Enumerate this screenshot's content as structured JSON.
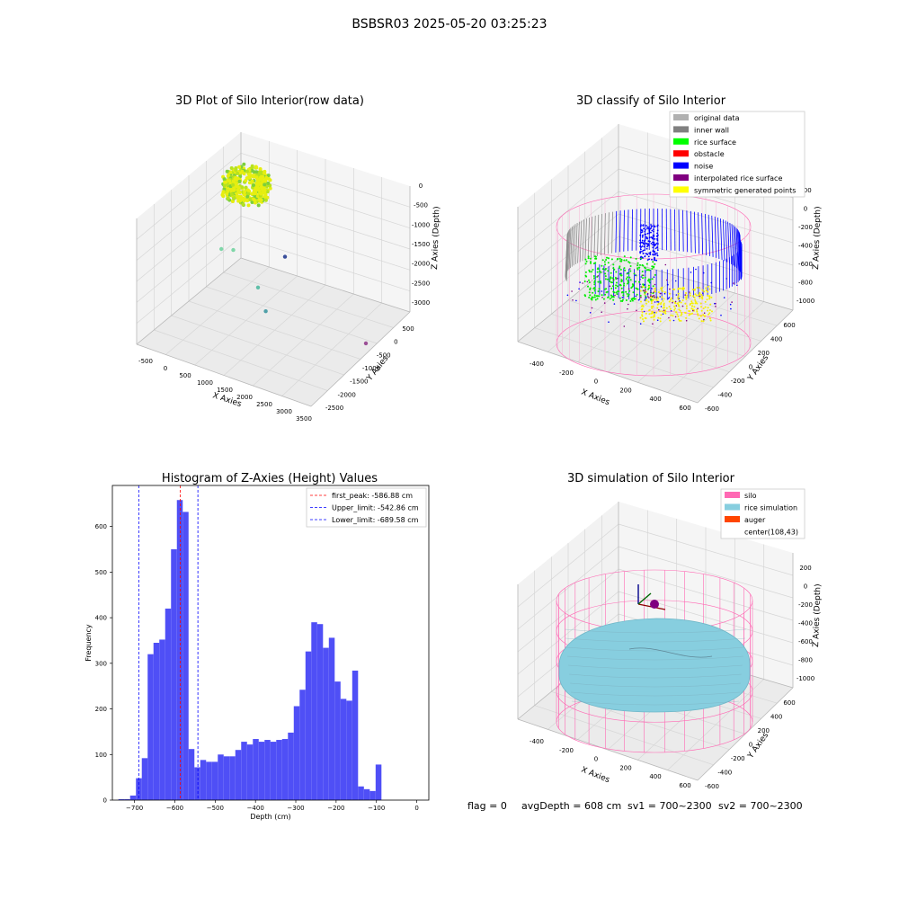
{
  "figure_title": "BSBSR03 2025-05-20 03:25:23",
  "footer": {
    "flag": "flag = 0",
    "avg_depth": "avgDepth = 608 cm",
    "sv1": "sv1 = 700~2300",
    "sv2": "sv2 = 700~2300"
  },
  "colors": {
    "hist_bar": "#4b4bf6",
    "peak_line": "#ff0000",
    "limit_line": "#0000ff",
    "rice_yellow": "#f5f000",
    "rice_green": "#00ee00",
    "noise_blue": "#0000ff",
    "wall_gray": "#8c8c8c",
    "silo_pink": "#ff69b4",
    "rice_sim": "#87cedf",
    "auger": "#ff4500"
  },
  "chart_data": [
    {
      "type": "scatter3d",
      "title": "3D Plot of Silo Interior(row data)",
      "xlabel": "X Axies",
      "ylabel": "Y Axies",
      "zlabel": "Z Axies (Depth)",
      "x_ticks": [
        "-500",
        "0",
        "500",
        "1000",
        "1500",
        "2000",
        "2500",
        "3000",
        "3500"
      ],
      "y_ticks": [
        "500",
        "0",
        "-500",
        "-1000",
        "-1500",
        "-2000",
        "-2500"
      ],
      "z_ticks": [
        "0",
        "-500",
        "-1000",
        "-1500",
        "-2000",
        "-2500",
        "-3000"
      ],
      "outliers": [
        {
          "x": 900,
          "y": -100,
          "z": -600,
          "color": "#7fd6a8"
        },
        {
          "x": 1100,
          "y": -200,
          "z": -620,
          "color": "#7fd6a8"
        },
        {
          "x": 1600,
          "y": -300,
          "z": -1400,
          "color": "#5fbfa8"
        },
        {
          "x": 1700,
          "y": -400,
          "z": -2000,
          "color": "#4fa0a8"
        },
        {
          "x": 3400,
          "y": -1200,
          "z": -2700,
          "color": "#9b4f96"
        },
        {
          "x": 600,
          "y": -2300,
          "z": -2400,
          "color": "#3a4f9b"
        }
      ]
    },
    {
      "type": "scatter3d",
      "title": "3D classify of Silo Interior",
      "xlabel": "X Axies",
      "ylabel": "Y Axies",
      "zlabel": "Z Axies (Depth)",
      "x_ticks": [
        "-400",
        "-200",
        "0",
        "200",
        "400",
        "600"
      ],
      "y_ticks": [
        "600",
        "400",
        "200",
        "0",
        "-200",
        "-400",
        "-600"
      ],
      "z_ticks": [
        "200",
        "0",
        "-200",
        "-400",
        "-600",
        "-800",
        "-1000"
      ],
      "legend": [
        {
          "label": "original data",
          "color": "#b0b0b0"
        },
        {
          "label": "inner wall",
          "color": "#808080"
        },
        {
          "label": "rice surface",
          "color": "#00ff00"
        },
        {
          "label": "obstacle",
          "color": "#ff0000"
        },
        {
          "label": "noise",
          "color": "#0000ff"
        },
        {
          "label": "interpolated rice surface",
          "color": "#800080"
        },
        {
          "label": "symmetric generated points",
          "color": "#ffff00"
        }
      ]
    },
    {
      "type": "bar",
      "title": "Histogram of Z-Axies (Height) Values",
      "xlabel": "Depth (cm)",
      "ylabel": "Frequency",
      "xlim": [
        -755,
        30
      ],
      "ylim": [
        0,
        690
      ],
      "x_ticks": [
        -700,
        -600,
        -500,
        -400,
        -300,
        -200,
        -100,
        0
      ],
      "y_ticks": [
        0,
        100,
        200,
        300,
        400,
        500,
        600
      ],
      "bin_width": 14.5,
      "bin_start": -740,
      "values": [
        2,
        2,
        10,
        48,
        92,
        320,
        345,
        352,
        420,
        550,
        658,
        632,
        112,
        72,
        88,
        84,
        84,
        100,
        96,
        96,
        110,
        128,
        122,
        134,
        128,
        132,
        128,
        132,
        134,
        148,
        206,
        242,
        326,
        390,
        386,
        334,
        356,
        260,
        222,
        218,
        284,
        30,
        24,
        20,
        78
      ],
      "lines": [
        {
          "label": "first_peak: -586.88 cm",
          "x": -586.88,
          "color": "#ff0000"
        },
        {
          "label": "Upper_limit: -542.86 cm",
          "x": -542.86,
          "color": "#0000ff"
        },
        {
          "label": "Lower_limit: -689.58 cm",
          "x": -689.58,
          "color": "#0000ff"
        }
      ]
    },
    {
      "type": "surface3d",
      "title": "3D simulation of Silo Interior",
      "xlabel": "X Axies",
      "ylabel": "Y Axies",
      "zlabel": "Z Axies (Depth)",
      "x_ticks": [
        "-400",
        "-200",
        "0",
        "200",
        "400",
        "600"
      ],
      "y_ticks": [
        "600",
        "400",
        "200",
        "0",
        "-200",
        "-400",
        "-600"
      ],
      "z_ticks": [
        "200",
        "0",
        "-200",
        "-400",
        "-600",
        "-800",
        "-1000"
      ],
      "legend": [
        {
          "label": "silo",
          "color": "#ff69b4"
        },
        {
          "label": "rice simulation",
          "color": "#87cedf"
        },
        {
          "label": "auger",
          "color": "#ff4500"
        },
        {
          "label": "center(108,43)",
          "color": ""
        }
      ]
    }
  ]
}
